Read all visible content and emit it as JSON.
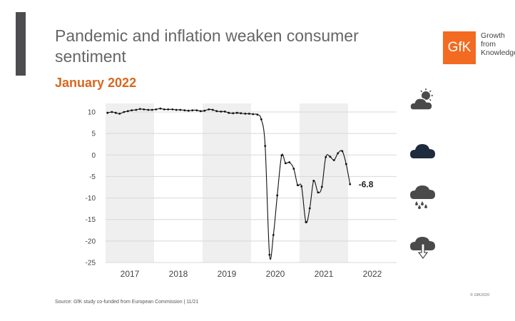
{
  "header": {
    "title": "Pandemic and inflation weaken consumer sentiment",
    "subtitle": "January 2022"
  },
  "logo": {
    "mark": "GfK",
    "lines": [
      "Growth",
      "from",
      "Knowledge"
    ],
    "color": "#f26b21"
  },
  "weather_icons": [
    "partly-cloudy-icon",
    "dark-cloud-icon",
    "rain-cloud-icon",
    "cloud-down-arrow-icon"
  ],
  "footer": {
    "source": "Source: GfK study co-funded from European Commission | 11/21",
    "copyright": "© GfK2020"
  },
  "colors": {
    "accent_orange": "#d9661f",
    "line": "#111111",
    "shade": "#efefef",
    "grid": "#d8d8d8",
    "cloud_dark": "#4a4a4a",
    "cloud_navy": "#1f2b3d"
  },
  "chart_data": {
    "type": "line",
    "title": "",
    "xlabel": "",
    "ylabel": "",
    "ylim": [
      -25,
      10
    ],
    "yticks": [
      10,
      5,
      0,
      -5,
      -10,
      -15,
      -20,
      -25
    ],
    "xlim": [
      2016.5,
      2022.5
    ],
    "year_labels": [
      "2017",
      "2018",
      "2019",
      "2020",
      "2021",
      "2022"
    ],
    "year_centers": [
      2017,
      2018,
      2019,
      2020,
      2021,
      2022
    ],
    "shaded_years": [
      [
        2016.5,
        2017.5
      ],
      [
        2018.5,
        2019.5
      ],
      [
        2020.5,
        2021.5
      ]
    ],
    "grid": "horizontal",
    "last_value_label": "-6.8",
    "series": [
      {
        "x": [
          2016.54,
          2016.63,
          2016.71,
          2016.79,
          2016.88,
          2016.96,
          2017.04,
          2017.13,
          2017.21,
          2017.29,
          2017.38,
          2017.46,
          2017.54,
          2017.63,
          2017.71,
          2017.79,
          2017.88,
          2017.96,
          2018.04,
          2018.13,
          2018.21,
          2018.29,
          2018.38,
          2018.46,
          2018.54,
          2018.63,
          2018.71,
          2018.79,
          2018.88,
          2018.96,
          2019.04,
          2019.13,
          2019.21,
          2019.29,
          2019.38,
          2019.46,
          2019.54,
          2019.63,
          2019.71,
          2019.79,
          2019.88,
          2019.96,
          2020.04,
          2020.13,
          2020.21,
          2020.29,
          2020.38,
          2020.46,
          2020.54,
          2020.63,
          2020.71,
          2020.79,
          2020.88,
          2020.96,
          2021.04,
          2021.13,
          2021.21,
          2021.29,
          2021.38,
          2021.46
        ],
        "y": [
          9.8,
          10.0,
          9.8,
          9.6,
          10.0,
          10.2,
          10.4,
          10.5,
          10.7,
          10.6,
          10.5,
          10.5,
          10.6,
          10.8,
          10.6,
          10.6,
          10.6,
          10.5,
          10.5,
          10.4,
          10.3,
          10.4,
          10.4,
          10.2,
          10.3,
          10.6,
          10.5,
          10.2,
          10.1,
          10.1,
          9.8,
          9.7,
          9.8,
          9.7,
          9.6,
          9.6,
          9.5,
          9.4,
          8.3,
          2.1,
          -23.2,
          -18.6,
          -9.4,
          -0.1,
          -1.9,
          -1.7,
          -3.2,
          -7.0,
          -7.3,
          -15.6,
          -12.4,
          -6.0,
          -8.7,
          -7.4,
          -0.5,
          -0.4,
          -1.2,
          0.4,
          0.9,
          -2.1
        ],
        "last_point": [
          2021.54,
          -6.8
        ]
      }
    ]
  }
}
